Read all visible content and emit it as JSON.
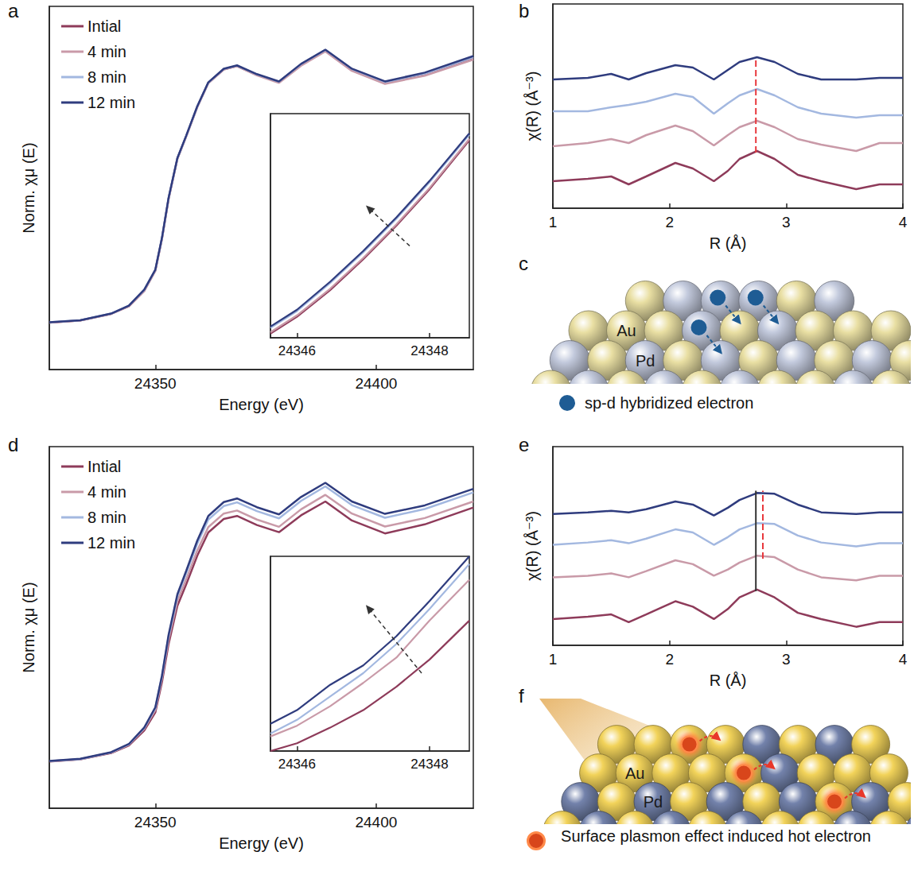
{
  "chart_data": [
    {
      "panel_label": "a",
      "type": "line",
      "x_label": "Energy (eV)",
      "y_label": "Norm. χμ (E)",
      "xlim": [
        24326,
        24422
      ],
      "xticks": [
        24350,
        24400
      ],
      "ylim": [
        0,
        1.2
      ],
      "tick_labels": "x",
      "grid": false,
      "legend": "upper left",
      "x": [
        24326,
        24333,
        24340,
        24344,
        24347.5,
        24350,
        24351.5,
        24353,
        24355,
        24357,
        24359.5,
        24362,
        24365.5,
        24368.5,
        24373,
        24378,
        24383,
        24388.5,
        24394.5,
        24402,
        24411,
        24422
      ],
      "series": [
        {
          "name": "Intial",
          "color": "#8e3b5a",
          "values": [
            0.155,
            0.162,
            0.184,
            0.209,
            0.26,
            0.327,
            0.432,
            0.564,
            0.697,
            0.771,
            0.868,
            0.947,
            0.992,
            1.003,
            0.974,
            0.95,
            1.008,
            1.055,
            0.992,
            0.949,
            0.977,
            1.03
          ]
        },
        {
          "name": "4 min",
          "color": "#c99aa8",
          "values": [
            0.155,
            0.162,
            0.184,
            0.209,
            0.26,
            0.326,
            0.431,
            0.563,
            0.696,
            0.77,
            0.867,
            0.946,
            0.991,
            1.002,
            0.972,
            0.947,
            1.004,
            1.051,
            0.987,
            0.944,
            0.971,
            1.024
          ]
        },
        {
          "name": "8 min",
          "color": "#a3b8e0",
          "values": [
            0.156,
            0.163,
            0.185,
            0.211,
            0.263,
            0.329,
            0.434,
            0.566,
            0.698,
            0.772,
            0.869,
            0.948,
            0.993,
            1.004,
            0.975,
            0.951,
            1.009,
            1.056,
            0.993,
            0.95,
            0.978,
            1.032
          ]
        },
        {
          "name": "12 min",
          "color": "#2f3c7e",
          "values": [
            0.156,
            0.163,
            0.185,
            0.211,
            0.264,
            0.33,
            0.435,
            0.567,
            0.699,
            0.773,
            0.87,
            0.949,
            0.994,
            1.005,
            0.976,
            0.952,
            1.01,
            1.057,
            0.994,
            0.952,
            0.981,
            1.036
          ]
        }
      ],
      "inset": {
        "xlim": [
          24345.6,
          24348.6
        ],
        "xticks": [
          24346,
          24348
        ],
        "ylim": [
          0.22,
          0.3
        ],
        "tick_labels": "x",
        "x": [
          24345.6,
          24346,
          24346.5,
          24347,
          24347.5,
          24348,
          24348.6
        ],
        "series": [
          {
            "name": "Intial",
            "color": "#8e3b5a",
            "values": [
              0.2215,
              0.2275,
              0.237,
              0.248,
              0.26,
              0.273,
              0.2905
            ]
          },
          {
            "name": "4 min",
            "color": "#c99aa8",
            "values": [
              0.222,
              0.228,
              0.2375,
              0.2485,
              0.2605,
              0.2735,
              0.291
            ]
          },
          {
            "name": "8 min",
            "color": "#a3b8e0",
            "values": [
              0.2235,
              0.2295,
              0.2395,
              0.2505,
              0.2625,
              0.2755,
              0.2925
            ]
          },
          {
            "name": "12 min",
            "color": "#2f3c7e",
            "values": [
              0.224,
              0.23,
              0.24,
              0.251,
              0.263,
              0.276,
              0.293
            ]
          }
        ]
      }
    },
    {
      "panel_label": "b",
      "type": "line",
      "x_label": "R (Å)",
      "y_label": "χ(R) (Å⁻³)",
      "xlim": [
        1,
        4
      ],
      "xticks": [
        1,
        2,
        3,
        4
      ],
      "ylim": [
        0,
        2.57
      ],
      "tick_labels": "x",
      "grid": false,
      "x": [
        1,
        1.3,
        1.5,
        1.65,
        1.8,
        2.05,
        2.2,
        2.38,
        2.5,
        2.6,
        2.75,
        2.9,
        3.1,
        3.3,
        3.6,
        3.8,
        4
      ],
      "series": [
        {
          "name": "Intial",
          "color": "#8e3b5a",
          "values": [
            0.34,
            0.37,
            0.4,
            0.3,
            0.4,
            0.57,
            0.5,
            0.34,
            0.47,
            0.62,
            0.72,
            0.62,
            0.42,
            0.34,
            0.24,
            0.3,
            0.3
          ]
        },
        {
          "name": "4 min",
          "color": "#c99aa8",
          "values": [
            0.78,
            0.82,
            0.87,
            0.82,
            0.92,
            1.04,
            0.97,
            0.79,
            0.92,
            1.02,
            1.1,
            1.02,
            0.87,
            0.8,
            0.72,
            0.82,
            0.82
          ]
        },
        {
          "name": "8 min",
          "color": "#a3b8e0",
          "values": [
            1.22,
            1.22,
            1.27,
            1.3,
            1.34,
            1.44,
            1.4,
            1.19,
            1.32,
            1.42,
            1.5,
            1.42,
            1.27,
            1.19,
            1.14,
            1.17,
            1.17
          ]
        },
        {
          "name": "12 min",
          "color": "#2f3c7e",
          "values": [
            1.62,
            1.64,
            1.69,
            1.62,
            1.7,
            1.8,
            1.77,
            1.62,
            1.74,
            1.84,
            1.9,
            1.84,
            1.69,
            1.62,
            1.62,
            1.64,
            1.64
          ]
        }
      ],
      "vlines": [
        {
          "x": 2.74,
          "from": 0.7,
          "to": 1.9,
          "color": "#e8383d",
          "line_style": "dashed"
        }
      ]
    },
    {
      "panel_label": "d",
      "type": "line",
      "x_label": "Energy (eV)",
      "y_label": "Norm. χμ (E)",
      "xlim": [
        24326,
        24422
      ],
      "xticks": [
        24350,
        24400
      ],
      "ylim": [
        0,
        1.2
      ],
      "tick_labels": "x",
      "grid": false,
      "legend": "upper left",
      "x": [
        24326,
        24333,
        24340,
        24344,
        24347.5,
        24350,
        24351.5,
        24353,
        24355,
        24357,
        24359.5,
        24362,
        24365.5,
        24368.5,
        24373,
        24378,
        24383,
        24388.5,
        24394.5,
        24402,
        24411,
        24422
      ],
      "series": [
        {
          "name": "Intial",
          "color": "#8e3b5a",
          "values": [
            0.155,
            0.162,
            0.183,
            0.208,
            0.258,
            0.318,
            0.418,
            0.545,
            0.672,
            0.743,
            0.838,
            0.915,
            0.96,
            0.97,
            0.94,
            0.916,
            0.972,
            1.018,
            0.955,
            0.912,
            0.942,
            0.998
          ]
        },
        {
          "name": "4 min",
          "color": "#c99aa8",
          "values": [
            0.156,
            0.163,
            0.185,
            0.211,
            0.264,
            0.326,
            0.43,
            0.56,
            0.688,
            0.76,
            0.855,
            0.933,
            0.978,
            0.988,
            0.958,
            0.934,
            0.992,
            1.04,
            0.978,
            0.935,
            0.963,
            1.018
          ]
        },
        {
          "name": "8 min",
          "color": "#a3b8e0",
          "values": [
            0.156,
            0.163,
            0.185,
            0.212,
            0.266,
            0.332,
            0.437,
            0.57,
            0.704,
            0.78,
            0.878,
            0.958,
            1.003,
            1.015,
            0.986,
            0.962,
            1.02,
            1.068,
            1.006,
            0.964,
            0.993,
            1.048
          ]
        },
        {
          "name": "12 min",
          "color": "#2f3c7e",
          "values": [
            0.157,
            0.164,
            0.186,
            0.213,
            0.268,
            0.335,
            0.44,
            0.575,
            0.71,
            0.788,
            0.888,
            0.97,
            1.016,
            1.028,
            0.999,
            0.975,
            1.033,
            1.08,
            1.018,
            0.977,
            1.005,
            1.06
          ]
        }
      ],
      "inset": {
        "xlim": [
          24345.6,
          24348.6
        ],
        "xticks": [
          24346,
          24348
        ],
        "ylim": [
          0.2,
          0.3
        ],
        "tick_labels": "x",
        "x": [
          24345.6,
          24346,
          24346.5,
          24347,
          24347.5,
          24348,
          24348.6
        ],
        "series": [
          {
            "name": "Intial",
            "color": "#8e3b5a",
            "values": [
              0.2,
              0.204,
              0.212,
              0.221,
              0.233,
              0.247,
              0.267
            ]
          },
          {
            "name": "4 min",
            "color": "#c99aa8",
            "values": [
              0.2075,
              0.213,
              0.223,
              0.235,
              0.248,
              0.267,
              0.288
            ]
          },
          {
            "name": "8 min",
            "color": "#a3b8e0",
            "values": [
              0.209,
              0.216,
              0.228,
              0.24,
              0.255,
              0.273,
              0.296
            ]
          },
          {
            "name": "12 min",
            "color": "#2f3c7e",
            "values": [
              0.214,
              0.221,
              0.234,
              0.244,
              0.259,
              0.277,
              0.3
            ]
          }
        ]
      }
    },
    {
      "panel_label": "e",
      "type": "line",
      "x_label": "R (Å)",
      "y_label": "χ(R) (Å⁻³)",
      "xlim": [
        1,
        4
      ],
      "xticks": [
        1,
        2,
        3,
        4
      ],
      "ylim": [
        0,
        2.57
      ],
      "tick_labels": "x",
      "grid": false,
      "x": [
        1,
        1.3,
        1.5,
        1.65,
        1.8,
        2.05,
        2.2,
        2.38,
        2.5,
        2.6,
        2.75,
        2.9,
        3.1,
        3.3,
        3.6,
        3.8,
        4
      ],
      "series": [
        {
          "name": "Intial",
          "color": "#8e3b5a",
          "values": [
            0.34,
            0.37,
            0.4,
            0.3,
            0.4,
            0.57,
            0.5,
            0.34,
            0.47,
            0.62,
            0.72,
            0.62,
            0.42,
            0.34,
            0.24,
            0.3,
            0.3
          ]
        },
        {
          "name": "4 min",
          "color": "#c99aa8",
          "values": [
            0.88,
            0.9,
            0.93,
            0.88,
            0.96,
            1.1,
            1.05,
            0.9,
            0.98,
            1.07,
            1.16,
            1.14,
            0.98,
            0.88,
            0.84,
            0.9,
            0.9
          ]
        },
        {
          "name": "8 min",
          "color": "#a3b8e0",
          "values": [
            1.3,
            1.33,
            1.36,
            1.32,
            1.38,
            1.5,
            1.46,
            1.3,
            1.4,
            1.5,
            1.58,
            1.57,
            1.42,
            1.33,
            1.28,
            1.32,
            1.32
          ]
        },
        {
          "name": "12 min",
          "color": "#2f3c7e",
          "values": [
            1.7,
            1.72,
            1.74,
            1.72,
            1.76,
            1.86,
            1.82,
            1.68,
            1.78,
            1.88,
            1.97,
            1.96,
            1.82,
            1.72,
            1.7,
            1.72,
            1.72
          ]
        }
      ],
      "vlines": [
        {
          "x": 2.74,
          "from": 0.7,
          "to": 2.0,
          "color": "#333333",
          "line_style": "solid"
        },
        {
          "x": 2.8,
          "from": 1.12,
          "to": 2.0,
          "color": "#e8383d",
          "line_style": "dashed"
        }
      ]
    }
  ],
  "diagrams": [
    {
      "panel_label": "c",
      "type": "diagram",
      "elements": [
        {
          "label": "Au",
          "color": "#e9dfa3"
        },
        {
          "label": "Pd",
          "color": "#c3cadd"
        }
      ],
      "legend_text": "sp-d hybridized electron"
    },
    {
      "panel_label": "f",
      "type": "diagram",
      "elements": [
        {
          "label": "Au",
          "color": "#f2d35a"
        },
        {
          "label": "Pd",
          "color": "#7382ab"
        }
      ],
      "legend_text": "Surface plasmon effect induced hot electron"
    }
  ]
}
